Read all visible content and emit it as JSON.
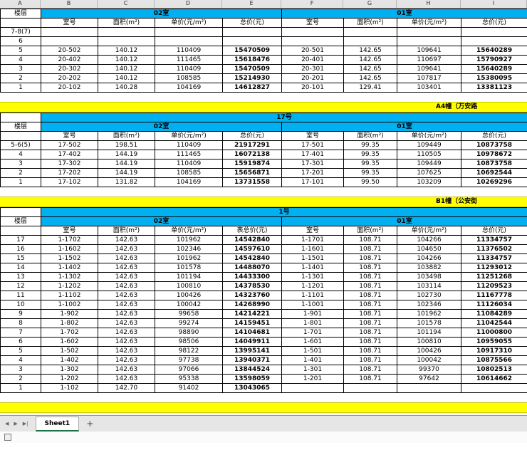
{
  "colors": {
    "section_header_bg": "#00b0f0",
    "band_bg": "#ffff00",
    "total_price_color": "#ff0000"
  },
  "column_strip": [
    "A",
    "B",
    "C",
    "D",
    "E",
    "F",
    "G",
    "H",
    "I"
  ],
  "floor_header": "楼层",
  "tables": [
    {
      "title": "",
      "left_section": "02室",
      "right_section": "01室",
      "left_headers": [
        "室号",
        "面积(m²)",
        "单价(元/m²)",
        "总价(元)"
      ],
      "right_headers": [
        "室号",
        "面积(m²)",
        "单价(元/m²)",
        "总价(元)"
      ],
      "rows": [
        {
          "floor": "7-8(7)",
          "left": [
            "",
            "",
            "",
            ""
          ],
          "right": [
            "",
            "",
            "",
            ""
          ]
        },
        {
          "floor": "6",
          "left": [
            "",
            "",
            "",
            ""
          ],
          "right": [
            "",
            "",
            "",
            ""
          ]
        },
        {
          "floor": "5",
          "left": [
            "20-502",
            "140.12",
            "110409",
            "15470509"
          ],
          "right": [
            "20-501",
            "142.65",
            "109641",
            "15640289"
          ]
        },
        {
          "floor": "4",
          "left": [
            "20-402",
            "140.12",
            "111465",
            "15618476"
          ],
          "right": [
            "20-401",
            "142.65",
            "110697",
            "15790927"
          ]
        },
        {
          "floor": "3",
          "left": [
            "20-302",
            "140.12",
            "110409",
            "15470509"
          ],
          "right": [
            "20-301",
            "142.65",
            "109641",
            "15640289"
          ]
        },
        {
          "floor": "2",
          "left": [
            "20-202",
            "140.12",
            "108585",
            "15214930"
          ],
          "right": [
            "20-201",
            "142.65",
            "107817",
            "15380095"
          ]
        },
        {
          "floor": "1",
          "left": [
            "20-102",
            "140.28",
            "104169",
            "14612827"
          ],
          "right": [
            "20-101",
            "129.41",
            "103401",
            "13381123"
          ]
        }
      ],
      "band_after": "A4幢（万安路"
    },
    {
      "title": "17号",
      "left_section": "02室",
      "right_section": "01室",
      "left_headers": [
        "室号",
        "面积(m²)",
        "单价(元/m²)",
        "总价(元)"
      ],
      "right_headers": [
        "室号",
        "面积(m²)",
        "单价(元/m²)",
        "总价(元)"
      ],
      "rows": [
        {
          "floor": "5-6(5)",
          "left": [
            "17-502",
            "198.51",
            "110409",
            "21917291"
          ],
          "right": [
            "17-501",
            "99.35",
            "109449",
            "10873758"
          ]
        },
        {
          "floor": "4",
          "left": [
            "17-402",
            "144.19",
            "111465",
            "16072138"
          ],
          "right": [
            "17-401",
            "99.35",
            "110505",
            "10978672"
          ]
        },
        {
          "floor": "3",
          "left": [
            "17-302",
            "144.19",
            "110409",
            "15919874"
          ],
          "right": [
            "17-301",
            "99.35",
            "109449",
            "10873758"
          ]
        },
        {
          "floor": "2",
          "left": [
            "17-202",
            "144.19",
            "108585",
            "15656871"
          ],
          "right": [
            "17-201",
            "99.35",
            "107625",
            "10692544"
          ]
        },
        {
          "floor": "1",
          "left": [
            "17-102",
            "131.82",
            "104169",
            "13731558"
          ],
          "right": [
            "17-101",
            "99.50",
            "103209",
            "10269296"
          ]
        }
      ],
      "band_after": "B1幢（公安街"
    },
    {
      "title": "1号",
      "left_section": "02室",
      "right_section": "01室",
      "left_headers": [
        "室号",
        "面积(m²)",
        "单价(元/m²)",
        "表总价(元)"
      ],
      "right_headers": [
        "室号",
        "面积(m²)",
        "单价(元/m²)",
        "总价(元)"
      ],
      "rows": [
        {
          "floor": "17",
          "left": [
            "1-1702",
            "142.63",
            "101962",
            "14542840"
          ],
          "right": [
            "1-1701",
            "108.71",
            "104266",
            "11334757"
          ]
        },
        {
          "floor": "16",
          "left": [
            "1-1602",
            "142.63",
            "102346",
            "14597610"
          ],
          "right": [
            "1-1601",
            "108.71",
            "104650",
            "11376502"
          ]
        },
        {
          "floor": "15",
          "left": [
            "1-1502",
            "142.63",
            "101962",
            "14542840"
          ],
          "right": [
            "1-1501",
            "108.71",
            "104266",
            "11334757"
          ]
        },
        {
          "floor": "14",
          "left": [
            "1-1402",
            "142.63",
            "101578",
            "14488070"
          ],
          "right": [
            "1-1401",
            "108.71",
            "103882",
            "11293012"
          ]
        },
        {
          "floor": "13",
          "left": [
            "1-1302",
            "142.63",
            "101194",
            "14433300"
          ],
          "right": [
            "1-1301",
            "108.71",
            "103498",
            "11251268"
          ]
        },
        {
          "floor": "12",
          "left": [
            "1-1202",
            "142.63",
            "100810",
            "14378530"
          ],
          "right": [
            "1-1201",
            "108.71",
            "103114",
            "11209523"
          ]
        },
        {
          "floor": "11",
          "left": [
            "1-1102",
            "142.63",
            "100426",
            "14323760"
          ],
          "right": [
            "1-1101",
            "108.71",
            "102730",
            "11167778"
          ]
        },
        {
          "floor": "10",
          "left": [
            "1-1002",
            "142.63",
            "100042",
            "14268990"
          ],
          "right": [
            "1-1001",
            "108.71",
            "102346",
            "11126034"
          ]
        },
        {
          "floor": "9",
          "left": [
            "1-902",
            "142.63",
            "99658",
            "14214221"
          ],
          "right": [
            "1-901",
            "108.71",
            "101962",
            "11084289"
          ]
        },
        {
          "floor": "8",
          "left": [
            "1-802",
            "142.63",
            "99274",
            "14159451"
          ],
          "right": [
            "1-801",
            "108.71",
            "101578",
            "11042544"
          ]
        },
        {
          "floor": "7",
          "left": [
            "1-702",
            "142.63",
            "98890",
            "14104681"
          ],
          "right": [
            "1-701",
            "108.71",
            "101194",
            "11000800"
          ]
        },
        {
          "floor": "6",
          "left": [
            "1-602",
            "142.63",
            "98506",
            "14049911"
          ],
          "right": [
            "1-601",
            "108.71",
            "100810",
            "10959055"
          ]
        },
        {
          "floor": "5",
          "left": [
            "1-502",
            "142.63",
            "98122",
            "13995141"
          ],
          "right": [
            "1-501",
            "108.71",
            "100426",
            "10917310"
          ]
        },
        {
          "floor": "4",
          "left": [
            "1-402",
            "142.63",
            "97738",
            "13940371"
          ],
          "right": [
            "1-401",
            "108.71",
            "100042",
            "10875566"
          ]
        },
        {
          "floor": "3",
          "left": [
            "1-302",
            "142.63",
            "97066",
            "13844524"
          ],
          "right": [
            "1-301",
            "108.71",
            "99370",
            "10802513"
          ]
        },
        {
          "floor": "2",
          "left": [
            "1-202",
            "142.63",
            "95338",
            "13598059"
          ],
          "right": [
            "1-201",
            "108.71",
            "97642",
            "10614662"
          ]
        },
        {
          "floor": "1",
          "left": [
            "1-102",
            "142.70",
            "91402",
            "13043065"
          ],
          "right": [
            "",
            "",
            "",
            ""
          ]
        }
      ],
      "band_after": ""
    }
  ],
  "tab_bar": {
    "nav_icons": [
      "◀",
      "▶",
      "▶|"
    ],
    "sheet_name": "Sheet1",
    "add_label": "+"
  }
}
